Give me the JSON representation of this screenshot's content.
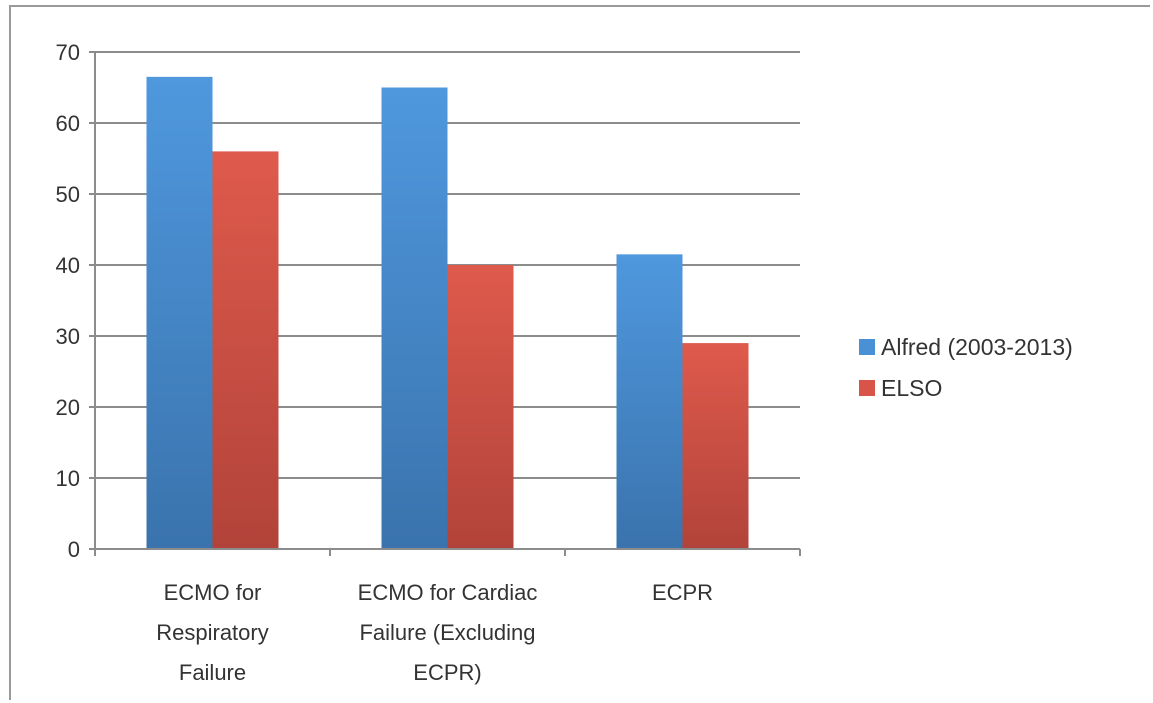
{
  "chart_data": {
    "type": "bar",
    "categories": [
      [
        "ECMO for",
        "Respiratory",
        "Failure"
      ],
      [
        "ECMO for Cardiac",
        "Failure (Excluding",
        "ECPR)"
      ],
      [
        "ECPR"
      ]
    ],
    "series": [
      {
        "name": "Alfred (2003-2013)",
        "values": [
          66.5,
          65,
          41.5
        ],
        "color": "#4a90d4"
      },
      {
        "name": "ELSO",
        "values": [
          56,
          40,
          29
        ],
        "color": "#d85448"
      }
    ],
    "ylim": [
      0,
      70
    ],
    "yticks": [
      0,
      10,
      20,
      30,
      40,
      50,
      60,
      70
    ],
    "grid": true,
    "legend": "right"
  }
}
